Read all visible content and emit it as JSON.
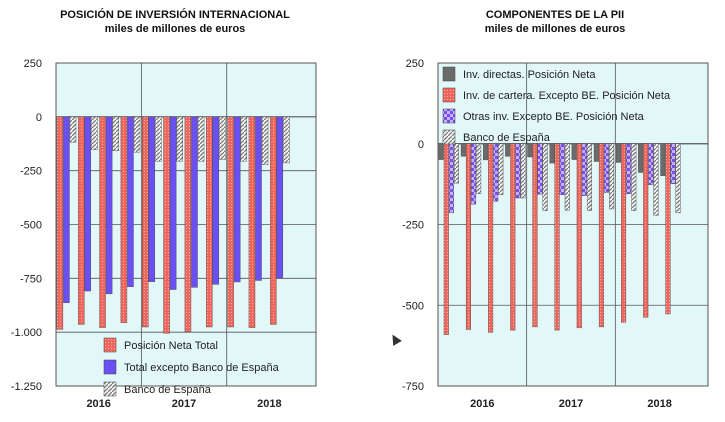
{
  "colors": {
    "plot_bg": "#e2f7f8",
    "red": "#f0665c",
    "blue": "#6a4ff2",
    "gray": "#6b6b6b",
    "purple": "#8a5cf0",
    "hatch": "#888888"
  },
  "chart_data": [
    {
      "type": "bar",
      "title": "POSICIÓN DE INVERSIÓN INTERNACIONAL",
      "subtitle": "miles de millones de euros",
      "xlabel": "",
      "ylabel": "",
      "ylim": [
        -1250,
        250
      ],
      "yticks": [
        250,
        0,
        -250,
        -500,
        -750,
        -1000,
        -1250
      ],
      "ytick_labels": [
        "250",
        "0",
        "-250",
        "-500",
        "-750",
        "-1.000",
        "-1.250"
      ],
      "year_labels": [
        "2016",
        "2017",
        "2018"
      ],
      "periods_per_year": 4,
      "legend_position": "bottom-center",
      "series": [
        {
          "name": "Posición Neta Total",
          "style": "red",
          "values": [
            -987,
            -964,
            -979,
            -956,
            -976,
            -1005,
            -998,
            -976,
            -976,
            -979,
            -964
          ]
        },
        {
          "name": "Total excepto Banco de España",
          "style": "blue",
          "values": [
            -863,
            -809,
            -822,
            -789,
            -766,
            -802,
            -792,
            -778,
            -767,
            -760,
            -750
          ]
        },
        {
          "name": "Banco de España",
          "style": "hatch",
          "values": [
            -118,
            -152,
            -157,
            -164,
            -206,
            -206,
            -206,
            -198,
            -206,
            -222,
            -214
          ]
        }
      ]
    },
    {
      "type": "bar",
      "title": "COMPONENTES DE LA PII",
      "subtitle": "miles de millones de euros",
      "xlabel": "",
      "ylabel": "",
      "ylim": [
        -750,
        250
      ],
      "yticks": [
        250,
        0,
        -250,
        -500,
        -750
      ],
      "ytick_labels": [
        "250",
        "0",
        "-250",
        "-500",
        "-750"
      ],
      "year_labels": [
        "2016",
        "2017",
        "2018"
      ],
      "periods_per_year": 4,
      "legend_position": "top-left",
      "series": [
        {
          "name": "Inv. directas. Posición Neta",
          "style": "gray",
          "values": [
            -49,
            -39,
            -50,
            -39,
            -41,
            -60,
            -49,
            -55,
            -58,
            -89,
            -99
          ]
        },
        {
          "name": "Inv. de cartera. Excepto BE. Posición Neta",
          "style": "red",
          "values": [
            -591,
            -575,
            -584,
            -577,
            -567,
            -577,
            -570,
            -567,
            -553,
            -537,
            -527
          ]
        },
        {
          "name": "Otras inv. Excepto BE. Posición Neta",
          "style": "purple",
          "values": [
            -214,
            -187,
            -178,
            -168,
            -156,
            -158,
            -161,
            -151,
            -155,
            -127,
            -124
          ]
        },
        {
          "name": "Banco de España",
          "style": "hatch",
          "values": [
            -122,
            -155,
            -158,
            -168,
            -207,
            -206,
            -207,
            -202,
            -207,
            -222,
            -214
          ]
        }
      ]
    }
  ]
}
